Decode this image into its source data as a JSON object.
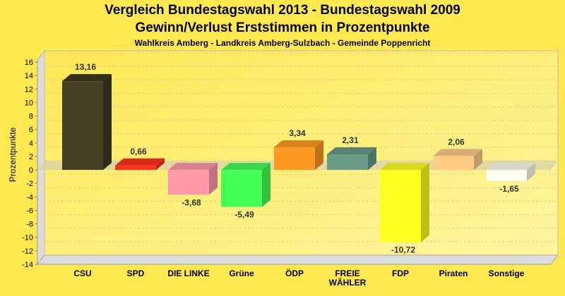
{
  "chart_data": {
    "type": "bar",
    "title": "Vergleich Bundestagswahl 2013 - Bundestagswahl 2009",
    "subtitle": "Gewinn/Verlust Erststimmen in Prozentpunkte",
    "subtitle2": "Wahlkreis Amberg - Landkreis Amberg-Sulzbach - Gemeinde Poppenricht",
    "xlabel": "",
    "ylabel": "Prozentpunkte",
    "ylim": [
      -14,
      16
    ],
    "yticks": [
      16,
      14,
      12,
      10,
      8,
      6,
      4,
      2,
      0,
      -2,
      -4,
      -6,
      -8,
      -10,
      -12,
      -14
    ],
    "grid": true,
    "categories": [
      "CSU",
      "SPD",
      "DIE LINKE",
      "Grüne",
      "ÖDP",
      "FREIE WÄHLER",
      "FDP",
      "Piraten",
      "Sonstige"
    ],
    "category_lines": [
      [
        "CSU"
      ],
      [
        "SPD"
      ],
      [
        "DIE LINKE"
      ],
      [
        "Grüne"
      ],
      [
        "ÖDP"
      ],
      [
        "FREIE",
        "WÄHLER"
      ],
      [
        "FDP"
      ],
      [
        "Piraten"
      ],
      [
        "Sonstige"
      ]
    ],
    "values": [
      13.16,
      0.66,
      -3.68,
      -5.49,
      3.34,
      2.31,
      -10.72,
      2.06,
      -1.65
    ],
    "labels": [
      "13,16",
      "0,66",
      "-3,68",
      "-5,49",
      "3,34",
      "2,31",
      "-10,72",
      "2,06",
      "-1,65"
    ],
    "colors": [
      "#3b3820",
      "#ff3322",
      "#ff99aa",
      "#44ff55",
      "#ff9922",
      "#6a9a88",
      "#ffff22",
      "#ffcc88",
      "#fffff0"
    ]
  }
}
